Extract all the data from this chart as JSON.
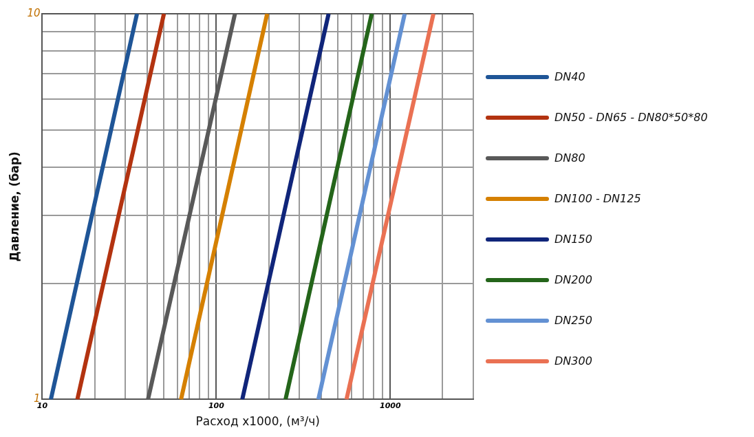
{
  "chart_data": {
    "type": "line",
    "xlabel": "Расход x1000, (м³/ч)",
    "ylabel": "Давление, (бар)",
    "log": "xy",
    "grid": true,
    "legend": "right",
    "marker": "none",
    "line_style": "solid",
    "xlim": [
      10,
      3000
    ],
    "ylim": [
      1,
      10
    ],
    "xticks": [
      10,
      {
        "value": 20,
        "label": null
      },
      {
        "value": 30,
        "label": null
      },
      {
        "value": 40,
        "label": null
      },
      {
        "value": 50,
        "label": null
      },
      {
        "value": 60,
        "label": null
      },
      {
        "value": 70,
        "label": null
      },
      {
        "value": 80,
        "label": null
      },
      {
        "value": 90,
        "label": null
      },
      100,
      {
        "value": 200,
        "label": null
      },
      {
        "value": 300,
        "label": null
      },
      {
        "value": 400,
        "label": null
      },
      {
        "value": 500,
        "label": null
      },
      {
        "value": 600,
        "label": null
      },
      {
        "value": 700,
        "label": null
      },
      {
        "value": 800,
        "label": null
      },
      {
        "value": 900,
        "label": null
      },
      1000,
      {
        "value": 2000,
        "label": null
      },
      {
        "value": 3000,
        "label": null
      }
    ],
    "yticks": [
      1,
      {
        "value": 2,
        "label": null
      },
      {
        "value": 3,
        "label": null
      },
      {
        "value": 4,
        "label": null
      },
      {
        "value": 5,
        "label": null
      },
      {
        "value": 6,
        "label": null
      },
      {
        "value": 7,
        "label": null
      },
      {
        "value": 8,
        "label": null
      },
      {
        "value": 9,
        "label": null
      },
      10
    ],
    "series": [
      {
        "name": "DN40",
        "color": "#1f5597",
        "x": [
          11.2,
          35
        ],
        "values": [
          1,
          10
        ]
      },
      {
        "name": "DN50 - DN65 - DN80*50*80",
        "color": "#b33310",
        "x": [
          15.9,
          50
        ],
        "values": [
          1,
          10
        ]
      },
      {
        "name": "DN80",
        "color": "#595959",
        "x": [
          40.5,
          128
        ],
        "values": [
          1,
          10
        ]
      },
      {
        "name": "DN100 - DN125",
        "color": "#d58000",
        "x": [
          62.7,
          196
        ],
        "values": [
          1,
          10
        ]
      },
      {
        "name": "DN150",
        "color": "#10257a",
        "x": [
          141,
          442
        ],
        "values": [
          1,
          10
        ]
      },
      {
        "name": "DN200",
        "color": "#24651a",
        "x": [
          250,
          782
        ],
        "values": [
          1,
          10
        ]
      },
      {
        "name": "DN250",
        "color": "#6391d3",
        "x": [
          386,
          1210
        ],
        "values": [
          1,
          10
        ]
      },
      {
        "name": "DN300",
        "color": "#ea7153",
        "x": [
          560,
          1770
        ],
        "values": [
          1,
          10
        ]
      }
    ]
  }
}
